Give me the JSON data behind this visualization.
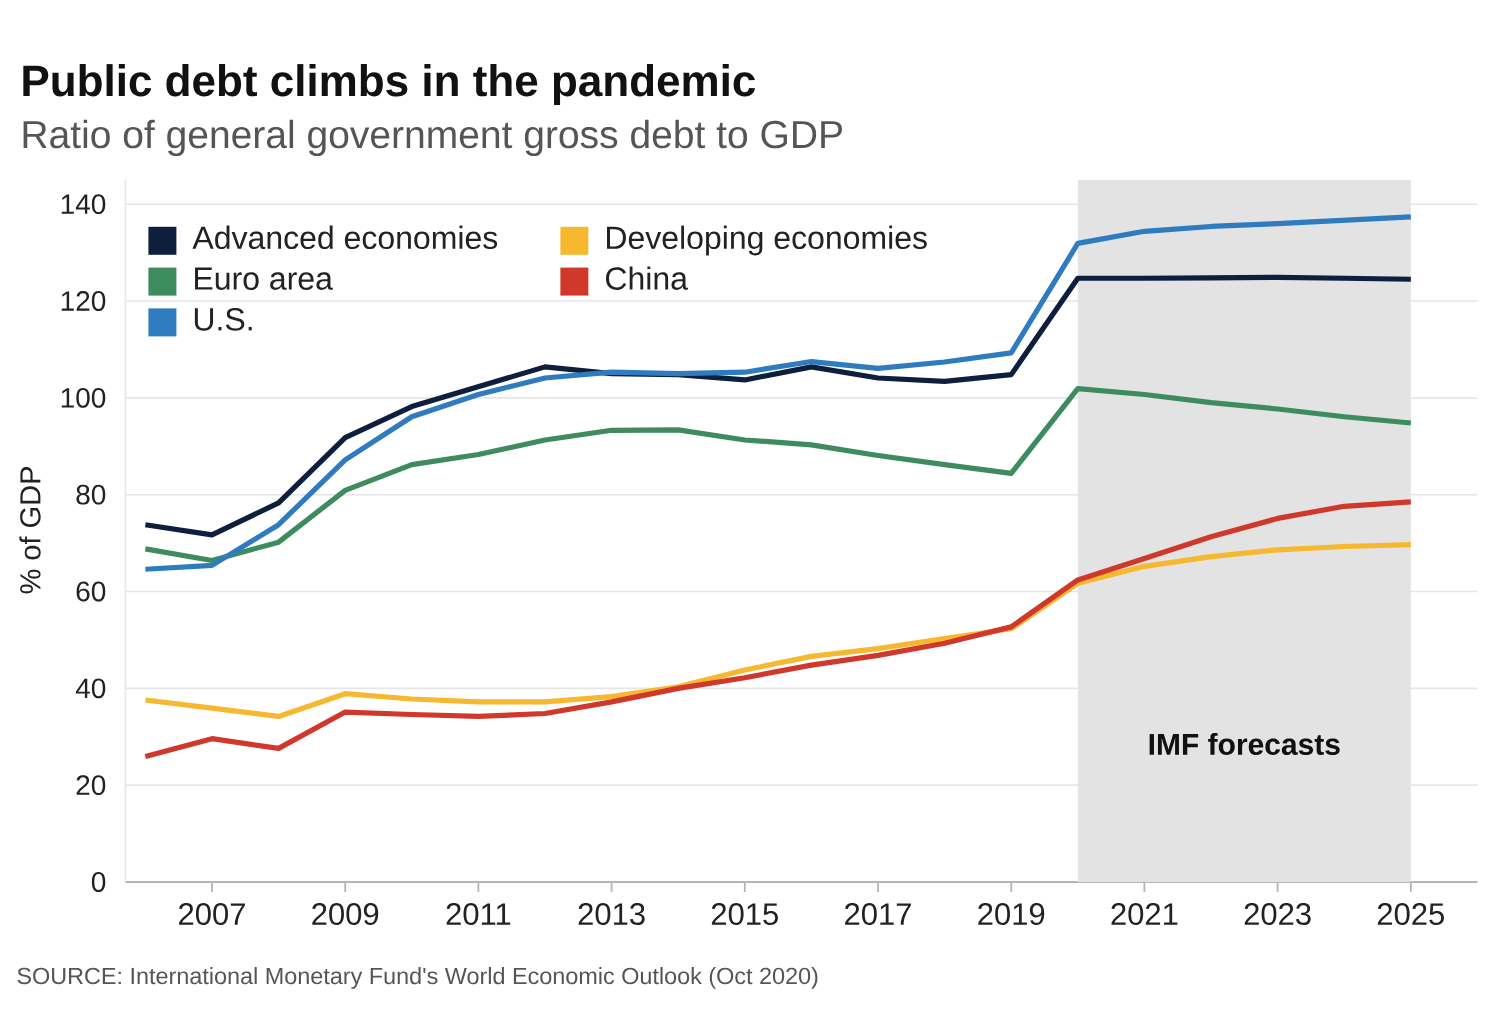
{
  "chart_data": {
    "type": "line",
    "title": "Public debt climbs in the pandemic",
    "subtitle": "Ratio of general government gross debt to GDP",
    "ylabel": "% of GDP",
    "annotations": [
      "SOURCE: International Monetary Fund's World Economic Outlook (Oct 2020)"
    ],
    "x": [
      2006,
      2007,
      2008,
      2009,
      2010,
      2011,
      2012,
      2013,
      2014,
      2015,
      2016,
      2017,
      2018,
      2019,
      2020,
      2021,
      2022,
      2023,
      2024,
      2025
    ],
    "series": [
      {
        "name": "Advanced economies",
        "color": "#0d1f3c",
        "values": [
          73.8,
          71.7,
          78.3,
          91.8,
          98.2,
          102.3,
          106.4,
          105.0,
          104.8,
          103.7,
          106.4,
          104.1,
          103.4,
          104.8,
          124.7,
          124.7,
          124.8,
          124.9,
          124.7,
          124.5
        ]
      },
      {
        "name": "Developing economies",
        "color": "#f5b82e",
        "values": [
          37.6,
          35.9,
          34.2,
          38.9,
          37.8,
          37.2,
          37.2,
          38.3,
          40.3,
          43.8,
          46.6,
          48.2,
          50.3,
          52.3,
          61.7,
          65.2,
          67.2,
          68.6,
          69.3,
          69.7
        ]
      },
      {
        "name": "Euro area",
        "color": "#3d8b5f",
        "values": [
          68.8,
          66.4,
          70.2,
          80.9,
          86.2,
          88.3,
          91.3,
          93.3,
          93.4,
          91.3,
          90.3,
          88.1,
          86.2,
          84.4,
          101.9,
          100.7,
          99.0,
          97.7,
          96.1,
          94.8
        ]
      },
      {
        "name": "China",
        "color": "#d0382c",
        "values": [
          25.9,
          29.6,
          27.6,
          35.1,
          34.6,
          34.2,
          34.8,
          37.2,
          40.0,
          42.2,
          44.8,
          46.8,
          49.3,
          52.7,
          62.4,
          66.8,
          71.3,
          75.1,
          77.6,
          78.5
        ]
      },
      {
        "name": "U.S.",
        "color": "#2e7cbf",
        "values": [
          64.6,
          65.4,
          73.8,
          87.2,
          96.1,
          100.7,
          104.1,
          105.3,
          105.0,
          105.3,
          107.5,
          106.1,
          107.4,
          109.3,
          131.9,
          134.4,
          135.4,
          136.0,
          136.7,
          137.4
        ]
      }
    ],
    "xlim": [
      2005.7,
      2026
    ],
    "ylim": [
      0,
      145
    ],
    "xticks": [
      2007,
      2009,
      2011,
      2013,
      2015,
      2017,
      2019,
      2021,
      2023,
      2025
    ],
    "yticks": [
      0,
      20,
      40,
      60,
      80,
      100,
      120,
      140
    ],
    "grid": "y",
    "legend": "top left",
    "bands": [
      {
        "axis": "x",
        "from": 2020,
        "to": 2025,
        "label": "IMF forecasts",
        "color": "#e3e3e3"
      }
    ]
  }
}
